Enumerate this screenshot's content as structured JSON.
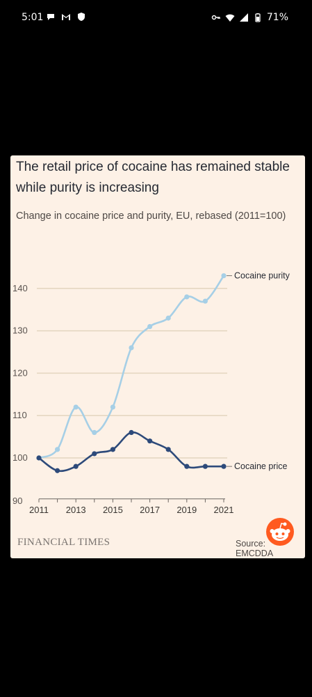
{
  "status_bar": {
    "time": "5:01",
    "battery": "71%",
    "left_icons": [
      "chat-icon",
      "gmail-icon",
      "shield-icon"
    ],
    "right_icons": [
      "key-icon",
      "wifi-icon",
      "signal-icon",
      "battery-icon"
    ]
  },
  "chart": {
    "title": "The retail price of cocaine has remained stable while purity is increasing",
    "subtitle": "Change in cocaine price and purity, EU, rebased (2011=100)",
    "footer_logo": "FINANCIAL TIMES",
    "footer_source": "Source: EMCDDA"
  },
  "chart_data": {
    "type": "line",
    "title": "The retail price of cocaine has remained stable while purity is increasing",
    "subtitle": "Change in cocaine price and purity, EU, rebased (2011=100)",
    "x": [
      2011,
      2012,
      2013,
      2014,
      2015,
      2016,
      2017,
      2018,
      2019,
      2020,
      2021
    ],
    "x_tick_labels": [
      "2011",
      "2013",
      "2015",
      "2017",
      "2019",
      "2021"
    ],
    "y_ticks": [
      90,
      100,
      110,
      120,
      130,
      140
    ],
    "ylim": [
      90,
      145
    ],
    "xlim": [
      2011,
      2021
    ],
    "grid": true,
    "series": [
      {
        "name": "Cocaine purity",
        "color": "#a6cfe6",
        "values": [
          100,
          102,
          112,
          106,
          112,
          126,
          131,
          133,
          138,
          137,
          143
        ]
      },
      {
        "name": "Cocaine price",
        "color": "#2d4a7a",
        "values": [
          100,
          97,
          98,
          101,
          102,
          106,
          104,
          102,
          98,
          98,
          98
        ]
      }
    ]
  },
  "reddit_icon": "reddit-snoo-icon"
}
